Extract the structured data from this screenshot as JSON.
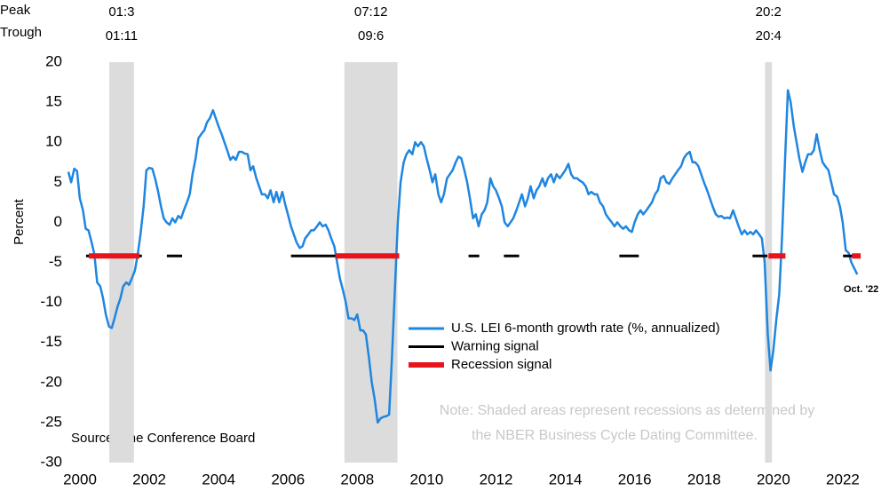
{
  "chart_data": {
    "type": "line",
    "y_label": "Percent",
    "xlim": [
      2000,
      2023
    ],
    "xticks": [
      2000,
      2002,
      2004,
      2006,
      2008,
      2010,
      2012,
      2014,
      2016,
      2018,
      2020,
      2022
    ],
    "ylim": [
      -30,
      20
    ],
    "yticks": [
      -30,
      -25,
      -20,
      -15,
      -10,
      -5,
      0,
      5,
      10,
      15,
      20
    ],
    "series": [
      {
        "name": "U.S. LEI 6-month growth rate (%, annualized)",
        "color": "#1f86e0",
        "x": [
          2000.0,
          2000.08,
          2000.17,
          2000.25,
          2000.33,
          2000.42,
          2000.5,
          2000.58,
          2000.67,
          2000.75,
          2000.83,
          2000.92,
          2001.0,
          2001.08,
          2001.17,
          2001.25,
          2001.33,
          2001.42,
          2001.5,
          2001.58,
          2001.67,
          2001.75,
          2001.83,
          2001.92,
          2002.0,
          2002.08,
          2002.17,
          2002.25,
          2002.33,
          2002.42,
          2002.5,
          2002.58,
          2002.67,
          2002.75,
          2002.83,
          2002.92,
          2003.0,
          2003.08,
          2003.17,
          2003.25,
          2003.33,
          2003.42,
          2003.5,
          2003.58,
          2003.67,
          2003.75,
          2003.83,
          2003.92,
          2004.0,
          2004.08,
          2004.17,
          2004.25,
          2004.33,
          2004.42,
          2004.5,
          2004.58,
          2004.67,
          2004.75,
          2004.83,
          2004.92,
          2005.0,
          2005.08,
          2005.17,
          2005.25,
          2005.33,
          2005.42,
          2005.5,
          2005.58,
          2005.67,
          2005.75,
          2005.83,
          2005.92,
          2006.0,
          2006.08,
          2006.17,
          2006.25,
          2006.33,
          2006.42,
          2006.5,
          2006.58,
          2006.67,
          2006.75,
          2006.83,
          2006.92,
          2007.0,
          2007.08,
          2007.17,
          2007.25,
          2007.33,
          2007.42,
          2007.5,
          2007.58,
          2007.67,
          2007.75,
          2007.83,
          2007.92,
          2008.0,
          2008.08,
          2008.17,
          2008.25,
          2008.33,
          2008.42,
          2008.5,
          2008.58,
          2008.67,
          2008.75,
          2008.83,
          2008.92,
          2009.0,
          2009.08,
          2009.17,
          2009.25,
          2009.33,
          2009.42,
          2009.5,
          2009.58,
          2009.67,
          2009.75,
          2009.83,
          2009.92,
          2010.0,
          2010.08,
          2010.17,
          2010.25,
          2010.33,
          2010.42,
          2010.5,
          2010.58,
          2010.67,
          2010.75,
          2010.83,
          2010.92,
          2011.0,
          2011.08,
          2011.17,
          2011.25,
          2011.33,
          2011.42,
          2011.5,
          2011.58,
          2011.67,
          2011.75,
          2011.83,
          2011.92,
          2012.0,
          2012.08,
          2012.17,
          2012.25,
          2012.33,
          2012.42,
          2012.5,
          2012.58,
          2012.67,
          2012.75,
          2012.83,
          2012.92,
          2013.0,
          2013.08,
          2013.17,
          2013.25,
          2013.33,
          2013.42,
          2013.5,
          2013.58,
          2013.67,
          2013.75,
          2013.83,
          2013.92,
          2014.0,
          2014.08,
          2014.17,
          2014.25,
          2014.33,
          2014.42,
          2014.5,
          2014.58,
          2014.67,
          2014.75,
          2014.83,
          2014.92,
          2015.0,
          2015.08,
          2015.17,
          2015.25,
          2015.33,
          2015.42,
          2015.5,
          2015.58,
          2015.67,
          2015.75,
          2015.83,
          2015.92,
          2016.0,
          2016.08,
          2016.17,
          2016.25,
          2016.33,
          2016.42,
          2016.5,
          2016.58,
          2016.67,
          2016.75,
          2016.83,
          2016.92,
          2017.0,
          2017.08,
          2017.17,
          2017.25,
          2017.33,
          2017.42,
          2017.5,
          2017.58,
          2017.67,
          2017.75,
          2017.83,
          2017.92,
          2018.0,
          2018.08,
          2018.17,
          2018.25,
          2018.33,
          2018.42,
          2018.5,
          2018.58,
          2018.67,
          2018.75,
          2018.83,
          2018.92,
          2019.0,
          2019.08,
          2019.17,
          2019.25,
          2019.33,
          2019.42,
          2019.5,
          2019.58,
          2019.67,
          2019.75,
          2019.83,
          2019.92,
          2020.0,
          2020.08,
          2020.17,
          2020.25,
          2020.33,
          2020.42,
          2020.5,
          2020.58,
          2020.67,
          2020.75,
          2020.83,
          2020.92,
          2021.0,
          2021.08,
          2021.17,
          2021.25,
          2021.33,
          2021.42,
          2021.5,
          2021.58,
          2021.67,
          2021.75,
          2021.83,
          2021.92,
          2022.0,
          2022.08,
          2022.17,
          2022.25,
          2022.33,
          2022.42,
          2022.5,
          2022.58,
          2022.67,
          2022.75
        ],
        "values": [
          6.3,
          5.0,
          6.7,
          6.4,
          3.0,
          1.5,
          -0.8,
          -1.0,
          -2.5,
          -4.0,
          -7.5,
          -8.0,
          -9.5,
          -11.5,
          -13.0,
          -13.2,
          -12.0,
          -10.5,
          -9.5,
          -8.0,
          -7.5,
          -7.8,
          -7.0,
          -6.0,
          -4.0,
          -1.5,
          2.0,
          6.5,
          6.8,
          6.7,
          5.5,
          4.0,
          2.0,
          0.5,
          0.0,
          -0.3,
          0.5,
          0.0,
          0.8,
          0.5,
          1.5,
          2.5,
          3.5,
          6.0,
          8.0,
          10.5,
          11.0,
          11.5,
          12.5,
          13.0,
          14.0,
          13.0,
          12.0,
          11.0,
          10.0,
          9.0,
          7.8,
          8.2,
          7.8,
          8.8,
          8.8,
          8.6,
          8.5,
          6.5,
          7.0,
          5.5,
          4.5,
          3.5,
          3.5,
          3.0,
          4.0,
          2.5,
          3.8,
          2.5,
          3.8,
          2.3,
          1.0,
          -0.5,
          -1.5,
          -2.5,
          -3.2,
          -3.0,
          -2.0,
          -1.5,
          -1.0,
          -1.0,
          -0.5,
          0.0,
          -0.5,
          -0.3,
          -1.0,
          -2.0,
          -3.0,
          -5.0,
          -7.0,
          -8.5,
          -10.0,
          -12.0,
          -12.0,
          -12.2,
          -11.5,
          -13.5,
          -13.5,
          -14.0,
          -17.0,
          -20.0,
          -22.0,
          -25.0,
          -24.5,
          -24.3,
          -24.2,
          -24.0,
          -17.0,
          -8.0,
          0.0,
          5.0,
          7.5,
          8.5,
          9.0,
          8.5,
          10.0,
          9.5,
          10.0,
          9.5,
          8.0,
          6.5,
          5.0,
          6.0,
          3.5,
          2.5,
          3.5,
          5.5,
          6.0,
          6.5,
          7.5,
          8.2,
          8.0,
          6.5,
          5.0,
          3.0,
          0.5,
          1.0,
          -0.5,
          1.0,
          1.5,
          2.5,
          5.5,
          4.5,
          4.0,
          3.0,
          2.0,
          0.0,
          -0.5,
          0.0,
          0.5,
          1.5,
          2.5,
          3.5,
          2.0,
          3.0,
          4.5,
          3.0,
          4.0,
          4.5,
          5.5,
          4.5,
          5.5,
          6.0,
          5.0,
          6.0,
          5.5,
          6.0,
          6.5,
          7.3,
          6.0,
          5.5,
          5.5,
          5.2,
          5.0,
          4.5,
          3.5,
          3.8,
          3.5,
          3.5,
          2.5,
          2.0,
          1.0,
          0.5,
          0.0,
          -0.5,
          0.0,
          -0.5,
          -0.8,
          -0.5,
          -1.0,
          -1.2,
          0.0,
          1.0,
          1.5,
          1.0,
          1.5,
          2.0,
          2.5,
          3.5,
          4.0,
          5.5,
          5.8,
          5.0,
          4.8,
          5.5,
          6.0,
          6.5,
          7.0,
          8.0,
          8.5,
          8.8,
          7.5,
          7.5,
          7.0,
          6.0,
          5.0,
          4.0,
          3.0,
          2.0,
          1.0,
          0.7,
          0.8,
          0.5,
          0.6,
          0.5,
          1.5,
          0.5,
          -0.5,
          -1.5,
          -1.0,
          -1.5,
          -1.2,
          -1.5,
          -1.0,
          -1.5,
          -2.0,
          -5.0,
          -14.0,
          -18.5,
          -16.0,
          -12.0,
          -9.0,
          -2.0,
          8.0,
          16.5,
          15.0,
          12.0,
          10.0,
          8.0,
          6.3,
          7.5,
          8.5,
          8.5,
          9.0,
          11.0,
          9.0,
          7.5,
          7.0,
          6.5,
          5.0,
          3.5,
          3.2,
          2.0,
          0.0,
          -3.5,
          -3.8,
          -5.0,
          -5.8,
          -6.5
        ]
      }
    ],
    "signals": [
      {
        "name": "Warning signal",
        "color": "#000000",
        "value": -4.2,
        "periods": [
          [
            2000.51,
            2002.12
          ],
          [
            2002.84,
            2003.28
          ],
          [
            2006.42,
            2007.7
          ],
          [
            2011.54,
            2011.85
          ],
          [
            2012.56,
            2013.0
          ],
          [
            2015.89,
            2016.45
          ],
          [
            2019.73,
            2020.16
          ],
          [
            2022.34,
            2022.8
          ]
        ]
      },
      {
        "name": "Recession signal",
        "color": "#e8141b",
        "value": -4.2,
        "periods": [
          [
            2000.59,
            2002.05
          ],
          [
            2007.7,
            2009.54
          ],
          [
            2020.19,
            2020.68
          ],
          [
            2022.6,
            2022.85
          ]
        ]
      }
    ],
    "recessions": {
      "peak_label": "Peak",
      "trough_label": "Trough",
      "color": "#dcdcdc",
      "periods": [
        {
          "start": 2001.18,
          "end": 2001.89,
          "peak": "01:3",
          "trough": "01:11"
        },
        {
          "start": 2007.96,
          "end": 2009.49,
          "peak": "07:12",
          "trough": "09:6"
        },
        {
          "start": 2020.09,
          "end": 2020.29,
          "peak": "20:2",
          "trough": "20:4"
        }
      ]
    },
    "last_point_label": "Oct. '22",
    "note": [
      "Note: Shaded areas represent recessions as determined by",
      "the NBER Business Cycle Dating Committee."
    ],
    "source": "Source: The Conference Board"
  }
}
